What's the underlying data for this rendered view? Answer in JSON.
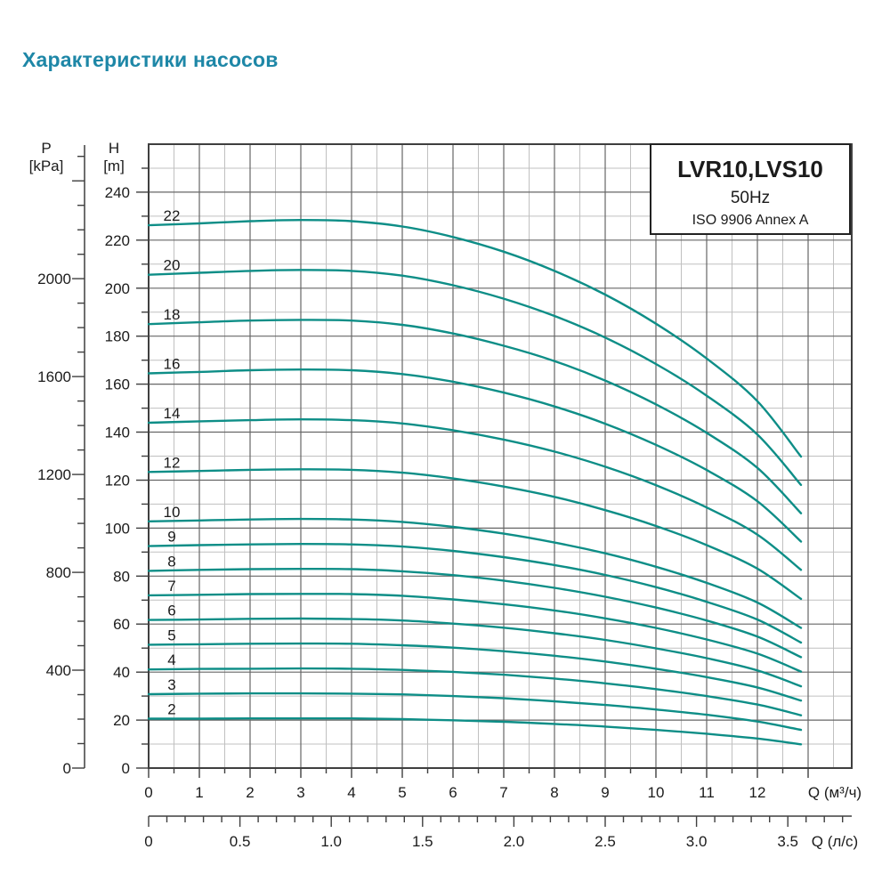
{
  "page": {
    "title": "Характеристики насосов",
    "title_color": "#1e87a7",
    "background": "#ffffff"
  },
  "chart_data": {
    "type": "line",
    "title_box": {
      "model": "LVR10,LVS10",
      "frequency": "50Hz",
      "standard": "ISO 9906 Annex A"
    },
    "colors": {
      "curve": "#0e8e87",
      "grid_dark": "#666666",
      "grid_light": "#c0c0c0",
      "border": "#3f3f3f",
      "tick": "#3f3f3f",
      "text": "#1b1b1b"
    },
    "axes": {
      "pressure": {
        "title": "P",
        "unit": "[kPa]",
        "tick_labels": [
          "2000",
          "1600",
          "1200",
          "800",
          "400",
          "0"
        ],
        "tick_values": [
          2000,
          1600,
          1200,
          800,
          400,
          0
        ],
        "minor_step_kpa": 100,
        "max_kpa": 2500
      },
      "head": {
        "title": "H",
        "unit": "[m]",
        "tick_labels": [
          "240",
          "220",
          "200",
          "180",
          "160",
          "140",
          "120",
          "100",
          "80",
          "60",
          "40",
          "20",
          "0"
        ],
        "tick_values": [
          240,
          220,
          200,
          180,
          160,
          140,
          120,
          100,
          80,
          60,
          40,
          20,
          0
        ],
        "minor_step_m": 10,
        "max_m": 260
      },
      "flow_m3h": {
        "title": "Q (м³/ч)",
        "tick_labels": [
          "0",
          "1",
          "2",
          "3",
          "4",
          "5",
          "6",
          "7",
          "8",
          "9",
          "10",
          "11",
          "12"
        ],
        "tick_values": [
          0,
          1,
          2,
          3,
          4,
          5,
          6,
          7,
          8,
          9,
          10,
          11,
          12
        ],
        "minor_step": 0.5,
        "major_tick_max": 13,
        "max": 13.86
      },
      "flow_lps": {
        "title": "Q (л/с)",
        "tick_labels": [
          "0",
          "0.5",
          "1.0",
          "1.5",
          "2.0",
          "2.5",
          "3.0",
          "3.5"
        ],
        "tick_values": [
          0,
          0.5,
          1.0,
          1.5,
          2.0,
          2.5,
          3.0,
          3.5
        ],
        "minor_step": 0.1,
        "minor_tick_max": 3.8,
        "max": 3.85
      }
    },
    "grid": {
      "dark_step_m": 20,
      "light_step_m": 10,
      "dark_step_m3h": 1,
      "light_step_m3h": 0.5,
      "grid_on": true
    },
    "q_values_m3h": [
      0,
      1,
      2,
      3,
      4,
      5,
      6,
      7,
      8,
      9,
      10,
      11,
      12,
      12.86
    ],
    "series": [
      {
        "label": "22",
        "h_m": [
          226.2,
          227.0,
          227.9,
          228.4,
          227.9,
          225.7,
          221.3,
          215.2,
          207.2,
          197.3,
          185.2,
          170.7,
          152.9,
          129.8
        ]
      },
      {
        "label": "20",
        "h_m": [
          205.6,
          206.4,
          207.2,
          207.6,
          207.2,
          205.2,
          201.2,
          195.6,
          188.4,
          179.4,
          168.4,
          155.2,
          139.0,
          118.0
        ]
      },
      {
        "label": "18",
        "h_m": [
          185.0,
          185.8,
          186.5,
          186.8,
          186.5,
          184.7,
          181.1,
          176.0,
          169.6,
          161.5,
          151.6,
          139.7,
          125.1,
          106.2
        ]
      },
      {
        "label": "16",
        "h_m": [
          164.5,
          165.1,
          165.8,
          166.1,
          165.8,
          164.2,
          161.0,
          156.5,
          150.7,
          143.5,
          134.7,
          124.2,
          111.2,
          94.4
        ]
      },
      {
        "label": "14",
        "h_m": [
          143.9,
          144.5,
          145.0,
          145.3,
          145.0,
          143.6,
          140.8,
          136.9,
          131.9,
          125.6,
          117.9,
          108.6,
          97.3,
          82.6
        ]
      },
      {
        "label": "12",
        "h_m": [
          123.4,
          123.8,
          124.3,
          124.5,
          124.3,
          123.1,
          120.7,
          117.3,
          113.0,
          107.5,
          100.9,
          92.9,
          83.1,
          70.5
        ]
      },
      {
        "label": "10",
        "h_m": [
          102.8,
          103.2,
          103.6,
          103.8,
          103.6,
          102.6,
          100.5,
          97.7,
          94.0,
          89.5,
          83.9,
          77.2,
          69.0,
          58.4
        ]
      },
      {
        "label": "9",
        "h_m": [
          92.5,
          92.9,
          93.2,
          93.4,
          93.2,
          92.3,
          90.5,
          87.9,
          84.6,
          80.5,
          75.4,
          69.3,
          61.9,
          52.3
        ]
      },
      {
        "label": "8",
        "h_m": [
          82.2,
          82.6,
          82.9,
          83.0,
          82.9,
          82.0,
          80.4,
          78.1,
          75.1,
          71.4,
          66.9,
          61.5,
          54.8,
          46.2
        ]
      },
      {
        "label": "7",
        "h_m": [
          72.0,
          72.2,
          72.5,
          72.6,
          72.5,
          71.8,
          70.3,
          68.3,
          65.7,
          62.4,
          58.4,
          53.6,
          47.7,
          40.2
        ]
      },
      {
        "label": "6",
        "h_m": [
          61.7,
          61.9,
          62.2,
          62.3,
          62.1,
          61.5,
          60.2,
          58.5,
          56.2,
          53.4,
          49.9,
          45.8,
          40.7,
          34.1
        ]
      },
      {
        "label": "5",
        "h_m": [
          51.4,
          51.6,
          51.8,
          51.9,
          51.8,
          51.2,
          50.2,
          48.7,
          46.8,
          44.4,
          41.4,
          37.9,
          33.6,
          28.1
        ]
      },
      {
        "label": "4",
        "h_m": [
          41.1,
          41.3,
          41.4,
          41.5,
          41.4,
          40.9,
          40.1,
          38.9,
          37.3,
          35.3,
          32.9,
          30.0,
          26.5,
          22.0
        ]
      },
      {
        "label": "3",
        "h_m": [
          30.8,
          31.0,
          31.1,
          31.1,
          31.0,
          30.7,
          30.0,
          29.1,
          27.8,
          26.3,
          24.4,
          22.2,
          19.4,
          15.9
        ]
      },
      {
        "label": "2",
        "h_m": [
          20.6,
          20.6,
          20.7,
          20.7,
          20.7,
          20.4,
          19.9,
          19.3,
          18.4,
          17.3,
          15.9,
          14.3,
          12.3,
          9.9
        ]
      }
    ]
  }
}
